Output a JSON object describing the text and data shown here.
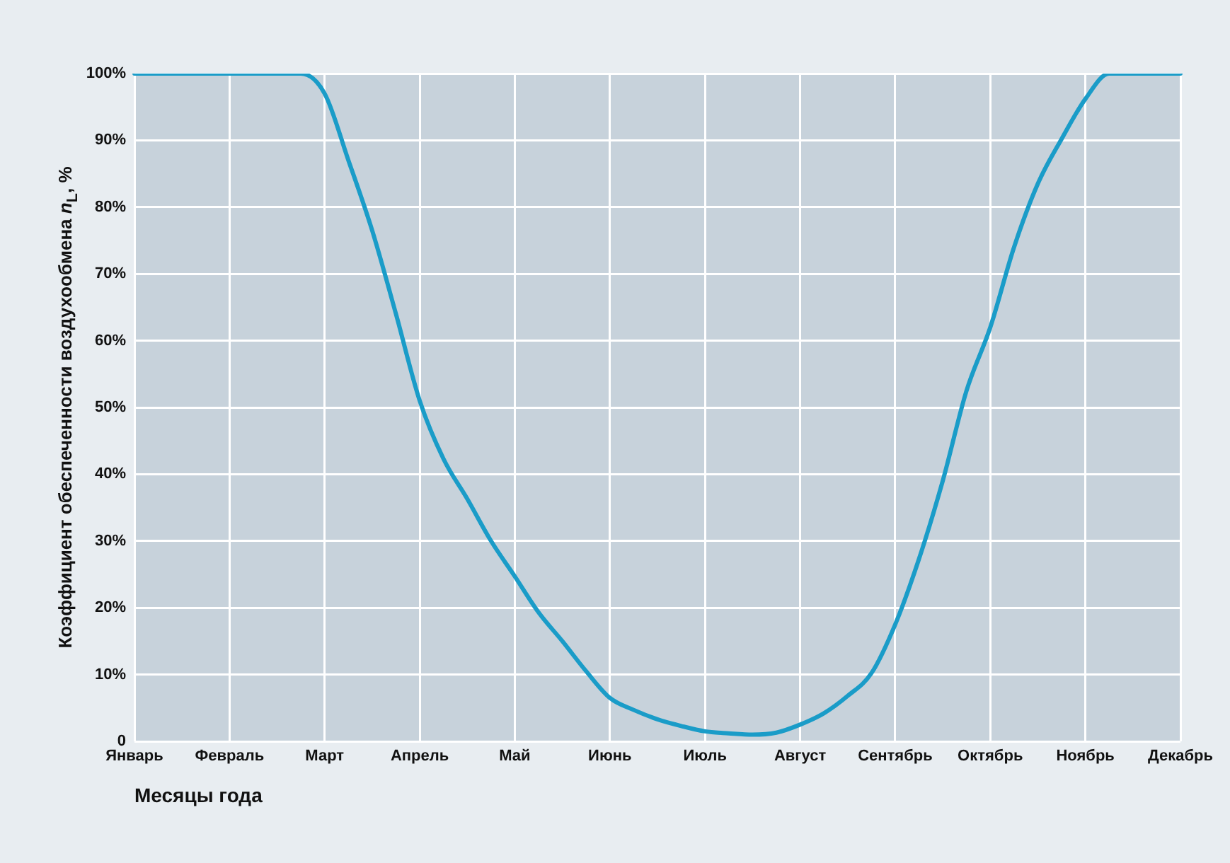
{
  "chart_data": {
    "type": "line",
    "xlabel": "Месяцы года",
    "ylabel": "Коэффициент обеспеченности воздухообмена n$_{L}$, %",
    "categories": [
      "Январь",
      null,
      null,
      null,
      "Февраль",
      null,
      null,
      null,
      "Март",
      null,
      null,
      null,
      "Апрель",
      null,
      null,
      null,
      "Май",
      null,
      null,
      null,
      "Июнь",
      null,
      null,
      null,
      "Июль",
      null,
      null,
      null,
      "Август",
      null,
      null,
      null,
      "Сентябрь",
      null,
      null,
      null,
      "Октябрь",
      null,
      null,
      null,
      "Ноябрь",
      null,
      null,
      null,
      "Декабрь"
    ],
    "ylim": [
      0,
      100
    ],
    "yticks": [
      0,
      {
        "value": 10,
        "label": "10%"
      },
      {
        "value": 20,
        "label": "20%"
      },
      {
        "value": 30,
        "label": "30%"
      },
      {
        "value": 40,
        "label": "40%"
      },
      {
        "value": 50,
        "label": "50%"
      },
      {
        "value": 60,
        "label": "60%"
      },
      {
        "value": 70,
        "label": "70%"
      },
      {
        "value": 80,
        "label": "80%"
      },
      {
        "value": 90,
        "label": "90%"
      },
      {
        "value": 100,
        "label": "100%"
      }
    ],
    "grid": true,
    "marker": "none",
    "line_style": "solid",
    "series": [
      {
        "color": "#1a9cc8",
        "values": [
          100,
          100,
          100,
          100,
          100,
          100,
          100,
          100,
          97,
          87,
          76.5,
          64,
          51,
          42.3,
          36.3,
          30,
          24.7,
          19.3,
          15,
          10.5,
          6.5,
          4.7,
          3.3,
          2.3,
          1.5,
          1.2,
          1.0,
          1.3,
          2.5,
          4.2,
          6.8,
          10.2,
          17.5,
          27.3,
          39,
          52.5,
          62,
          74,
          83.5,
          90.2,
          96.2,
          100,
          100,
          100,
          100
        ]
      }
    ]
  }
}
